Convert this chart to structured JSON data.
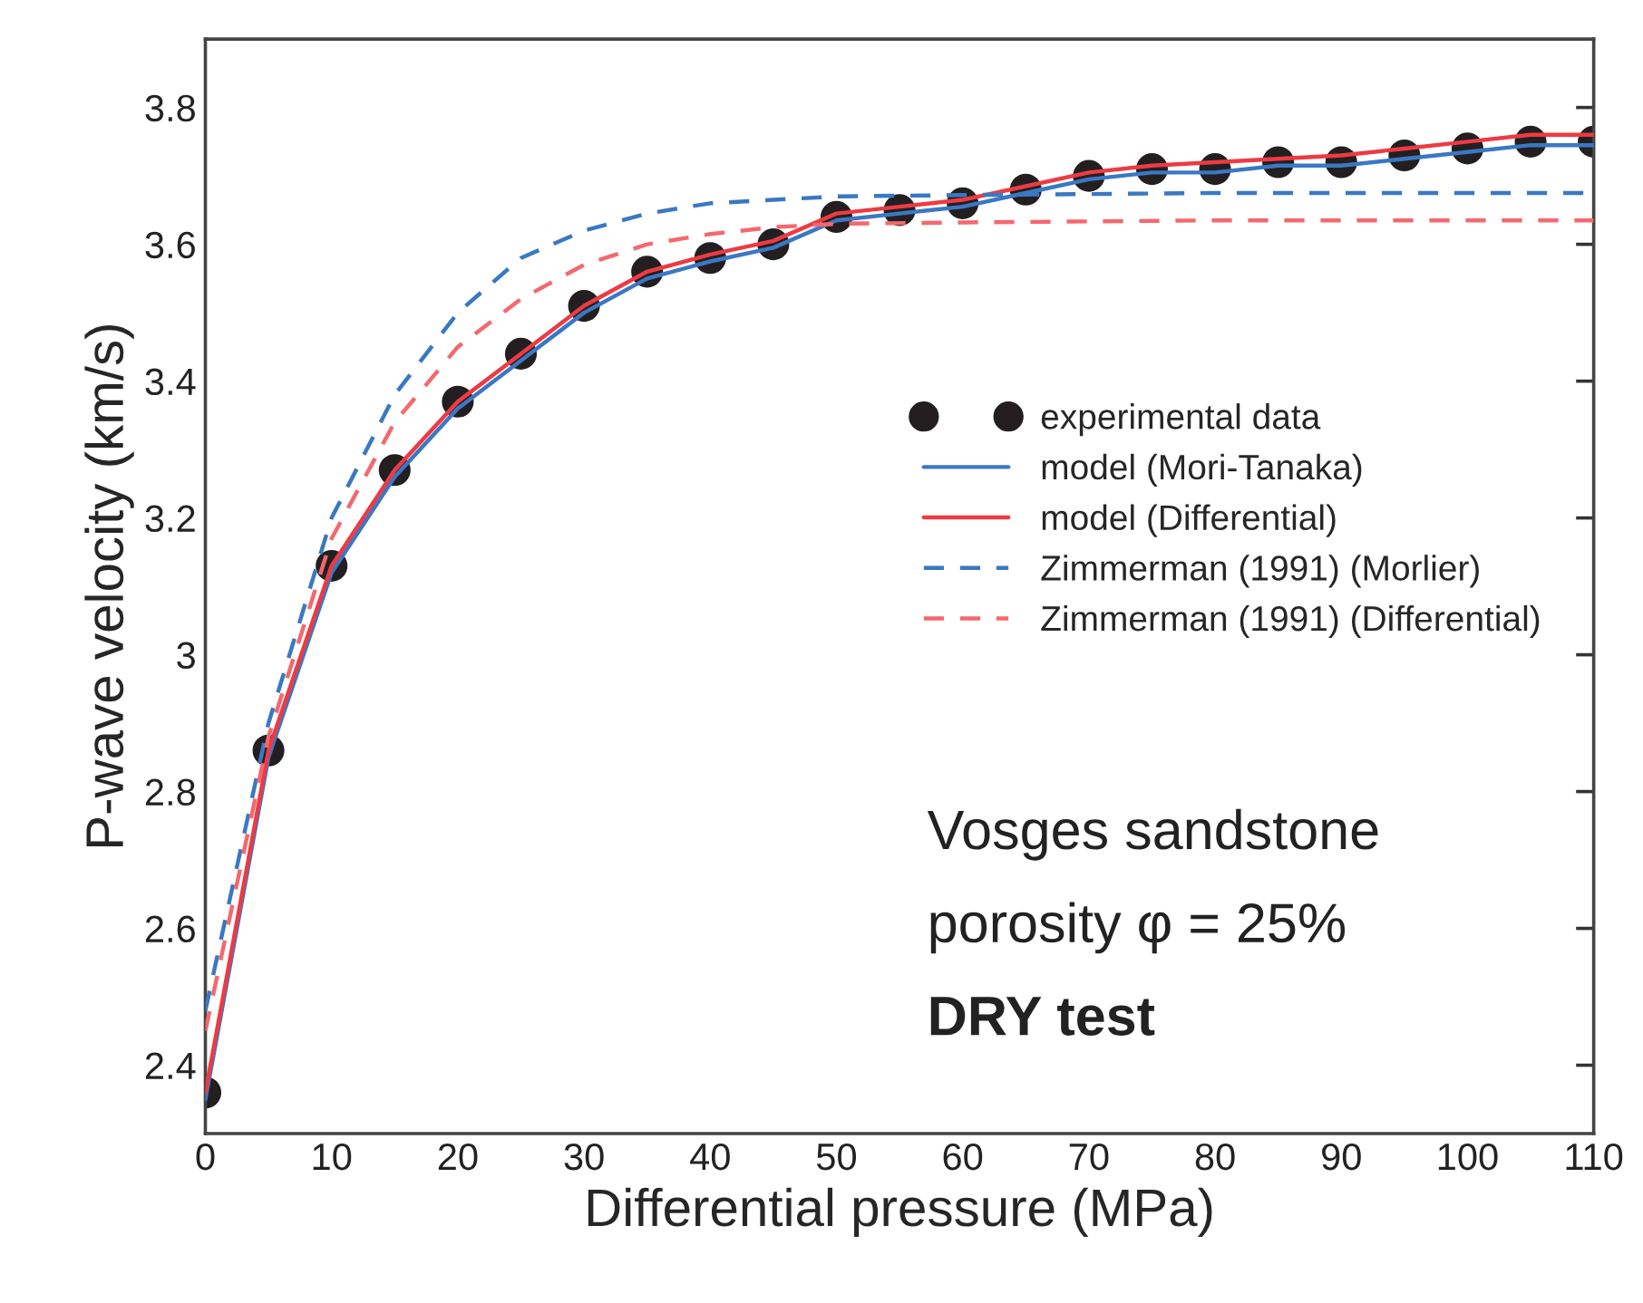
{
  "chart_data": {
    "type": "line",
    "xlabel": "Differential pressure (MPa)",
    "ylabel": "P-wave velocity (km/s)",
    "xlim": [
      0,
      110
    ],
    "xticks": [
      0,
      10,
      20,
      30,
      40,
      50,
      60,
      70,
      80,
      90,
      100,
      110
    ],
    "ylim": [
      2.3,
      3.9
    ],
    "yticks": [
      {
        "value": 2.4,
        "label": "2.4"
      },
      {
        "value": 2.6,
        "label": "2.6"
      },
      {
        "value": 2.8,
        "label": "2.8"
      },
      {
        "value": 3.0,
        "label": "3"
      },
      {
        "value": 3.2,
        "label": "3.2"
      },
      {
        "value": 3.4,
        "label": "3.4"
      },
      {
        "value": 3.6,
        "label": "3.6"
      },
      {
        "value": 3.8,
        "label": "3.8"
      }
    ],
    "grid": false,
    "legend": "right",
    "series": [
      {
        "name": "experimental data",
        "type": "scatter",
        "marker": "circle",
        "color": "#231f20",
        "x": [
          0,
          5,
          10,
          15,
          20,
          25,
          30,
          35,
          40,
          45,
          50,
          55,
          60,
          65,
          70,
          75,
          80,
          85,
          90,
          95,
          100,
          105,
          110
        ],
        "values": [
          2.36,
          2.86,
          3.13,
          3.27,
          3.37,
          3.44,
          3.51,
          3.56,
          3.58,
          3.6,
          3.64,
          3.65,
          3.66,
          3.68,
          3.7,
          3.71,
          3.71,
          3.72,
          3.72,
          3.73,
          3.74,
          3.75,
          3.75
        ]
      },
      {
        "name": "model (Mori-Tanaka)",
        "line_style": "solid",
        "color": "#3a78c3",
        "x": [
          0,
          5,
          10,
          15,
          20,
          25,
          30,
          35,
          40,
          45,
          50,
          55,
          60,
          65,
          70,
          75,
          80,
          85,
          90,
          95,
          100,
          105,
          110
        ],
        "values": [
          2.35,
          2.85,
          3.12,
          3.26,
          3.36,
          3.43,
          3.5,
          3.55,
          3.575,
          3.595,
          3.635,
          3.645,
          3.655,
          3.675,
          3.695,
          3.705,
          3.705,
          3.715,
          3.715,
          3.725,
          3.735,
          3.745,
          3.745
        ]
      },
      {
        "name": "model (Differential)",
        "line_style": "solid",
        "color": "#ee3a43",
        "x": [
          0,
          5,
          10,
          15,
          20,
          25,
          30,
          35,
          40,
          45,
          50,
          55,
          60,
          65,
          70,
          75,
          80,
          85,
          90,
          95,
          100,
          105,
          110
        ],
        "values": [
          2.36,
          2.86,
          3.13,
          3.27,
          3.37,
          3.44,
          3.51,
          3.56,
          3.585,
          3.605,
          3.645,
          3.655,
          3.665,
          3.685,
          3.705,
          3.715,
          3.72,
          3.725,
          3.73,
          3.74,
          3.75,
          3.76,
          3.76
        ]
      },
      {
        "name": "Zimmerman (1991) (Morlier)",
        "line_style": "dashed",
        "color": "#3a78c3",
        "x": [
          0,
          5,
          10,
          15,
          20,
          25,
          30,
          35,
          40,
          45,
          50,
          60,
          80,
          110
        ],
        "values": [
          2.48,
          2.9,
          3.2,
          3.38,
          3.5,
          3.58,
          3.62,
          3.645,
          3.66,
          3.665,
          3.67,
          3.672,
          3.675,
          3.675
        ]
      },
      {
        "name": "Zimmerman (1991) (Differential)",
        "line_style": "dashed",
        "color": "#f4686e",
        "x": [
          0,
          5,
          10,
          15,
          20,
          25,
          30,
          35,
          40,
          45,
          50,
          60,
          80,
          110
        ],
        "values": [
          2.45,
          2.88,
          3.17,
          3.34,
          3.45,
          3.52,
          3.57,
          3.6,
          3.615,
          3.625,
          3.63,
          3.632,
          3.635,
          3.635
        ]
      }
    ],
    "annotations": [
      "Vosges sandstone",
      "porosity φ = 25%",
      "DRY test"
    ]
  }
}
